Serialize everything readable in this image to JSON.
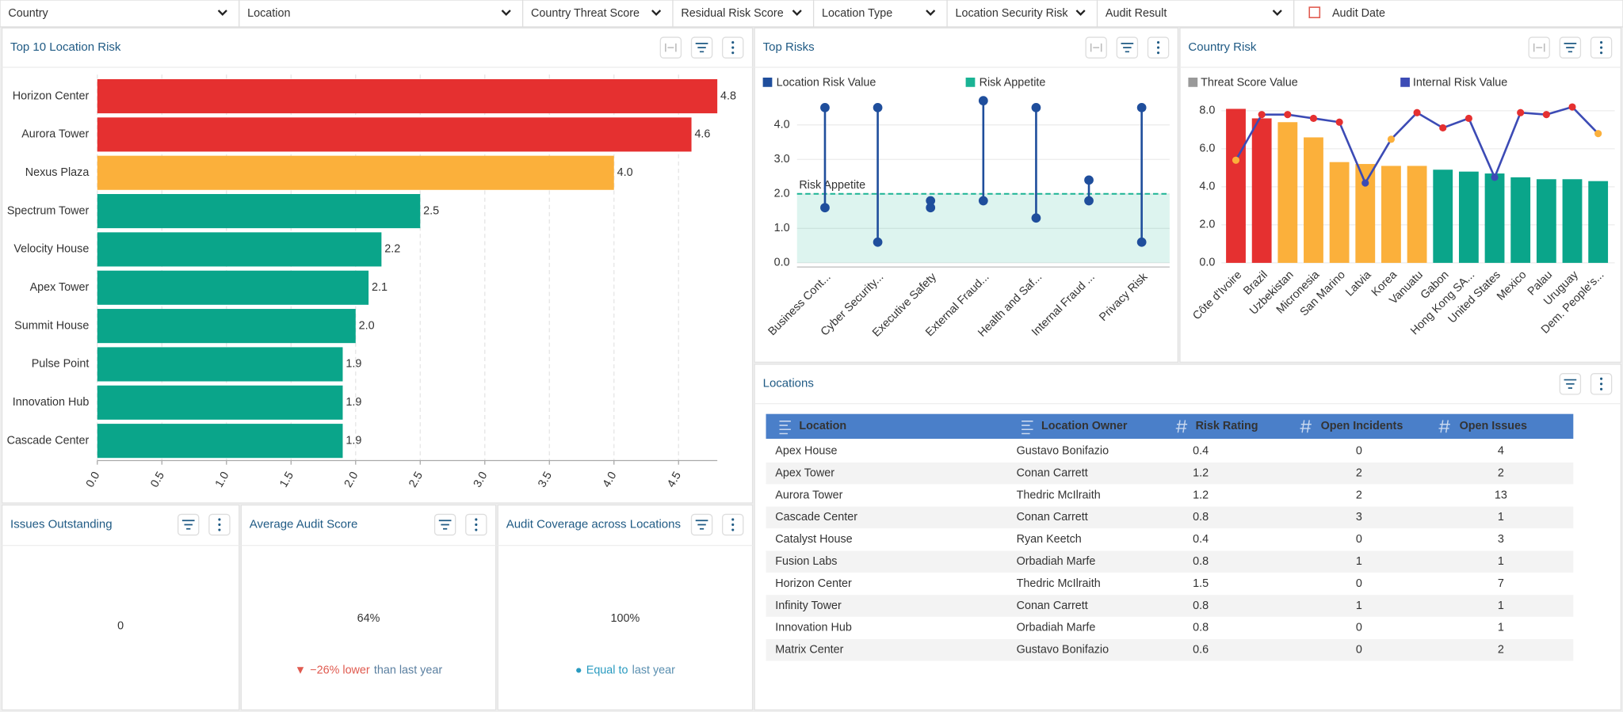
{
  "filters": [
    "Country",
    "Location",
    "Country Threat Score",
    "Residual Risk Score",
    "Location Type",
    "Location Security Risk",
    "Audit Result",
    "Audit Date"
  ],
  "top_location_risk": {
    "title": "Top 10 Location Risk",
    "type": "bar",
    "orientation": "horizontal",
    "categories": [
      "Horizon Center",
      "Aurora Tower",
      "Nexus Plaza",
      "Spectrum Tower",
      "Velocity House",
      "Apex Tower",
      "Summit House",
      "Pulse Point",
      "Innovation Hub",
      "Cascade Center"
    ],
    "values": [
      4.8,
      4.6,
      4.0,
      2.5,
      2.2,
      2.1,
      2.0,
      1.9,
      1.9,
      1.9
    ],
    "value_labels": [
      "4.8",
      "4.6",
      "4.0",
      "2.5",
      "2.2",
      "2.1",
      "2.0",
      "1.9",
      "1.9",
      "1.9"
    ],
    "colors": [
      "#e53030",
      "#e53030",
      "#fbb03b",
      "#0aa58a",
      "#0aa58a",
      "#0aa58a",
      "#0aa58a",
      "#0aa58a",
      "#0aa58a",
      "#0aa58a"
    ],
    "xlim": [
      0,
      4.8
    ],
    "xticks": [
      {
        "value": 0,
        "label": "0.0"
      },
      {
        "value": 0.5,
        "label": "0.5"
      },
      {
        "value": 1,
        "label": "1.0"
      },
      {
        "value": 1.5,
        "label": "1.5"
      },
      {
        "value": 2,
        "label": "2.0"
      },
      {
        "value": 2.5,
        "label": "2.5"
      },
      {
        "value": 3,
        "label": "3.0"
      },
      {
        "value": 3.5,
        "label": "3.5"
      },
      {
        "value": 4,
        "label": "4.0"
      },
      {
        "value": 4.5,
        "label": "4.5"
      }
    ],
    "grid": true
  },
  "top_risks": {
    "title": "Top Risks",
    "type": "dumbbell",
    "categories": [
      "Business Cont...",
      "Cyber Security...",
      "Executive Safety",
      "External Fraud...",
      "Health and Saf...",
      "Internal Fraud ...",
      "Privacy Risk"
    ],
    "series": [
      {
        "name": "Location Risk Value",
        "color": "#1f4e9c",
        "low": [
          1.6,
          0.6,
          1.6,
          1.8,
          1.3,
          1.8,
          0.6
        ],
        "high": [
          4.5,
          4.5,
          1.8,
          4.7,
          4.5,
          2.4,
          4.5
        ]
      }
    ],
    "risk_appetite": {
      "name": "Risk Appetite",
      "value": 2.0,
      "color": "#1ab394"
    },
    "ylim": [
      0,
      4.8
    ],
    "yticks": [
      {
        "value": 0,
        "label": "0.0"
      },
      {
        "value": 1,
        "label": "1.0"
      },
      {
        "value": 2,
        "label": "2.0"
      },
      {
        "value": 3,
        "label": "3.0"
      },
      {
        "value": 4,
        "label": "4.0"
      }
    ],
    "grid": true
  },
  "country_risk": {
    "title": "Country Risk",
    "type": "bar-line",
    "categories": [
      "Côte d'Ivoire",
      "Brazil",
      "Uzbekistan",
      "Micronesia",
      "San Marino",
      "Latvia",
      "Korea",
      "Vanuatu",
      "Gabon",
      "Hong Kong SA...",
      "United States",
      "Mexico",
      "Palau",
      "Uruguay",
      "Dem. People's..."
    ],
    "series": [
      {
        "name": "Threat Score Value",
        "color": "#999999",
        "type": "bar",
        "values": [
          8.1,
          7.6,
          7.4,
          6.6,
          5.3,
          5.2,
          5.1,
          5.1,
          4.9,
          4.8,
          4.7,
          4.5,
          4.4,
          4.4,
          4.3
        ],
        "colors": [
          "#e53030",
          "#e53030",
          "#fbb03b",
          "#fbb03b",
          "#fbb03b",
          "#fbb03b",
          "#fbb03b",
          "#fbb03b",
          "#0aa58a",
          "#0aa58a",
          "#0aa58a",
          "#0aa58a",
          "#0aa58a",
          "#0aa58a",
          "#0aa58a"
        ]
      },
      {
        "name": "Internal Risk Value",
        "color": "#3c4bb5",
        "type": "line",
        "values": [
          5.4,
          7.8,
          7.8,
          7.6,
          7.4,
          4.2,
          6.5,
          7.9,
          7.1,
          7.6,
          4.5,
          7.9,
          7.8,
          8.2,
          6.8
        ],
        "point_colors": [
          "#fbb03b",
          "#e53030",
          "#e53030",
          "#e53030",
          "#e53030",
          "#3c4bb5",
          "#fbb03b",
          "#e53030",
          "#e53030",
          "#e53030",
          "#3c4bb5",
          "#e53030",
          "#e53030",
          "#e53030",
          "#fbb03b"
        ]
      }
    ],
    "ylim": [
      0,
      8.6
    ],
    "yticks": [
      {
        "value": 0,
        "label": "0.0"
      },
      {
        "value": 2,
        "label": "2.0"
      },
      {
        "value": 4,
        "label": "4.0"
      },
      {
        "value": 6,
        "label": "6.0"
      },
      {
        "value": 8,
        "label": "8.0"
      }
    ],
    "grid": true
  },
  "locations": {
    "title": "Locations",
    "columns": [
      "Location",
      "Location Owner",
      "Risk Rating",
      "Open Incidents",
      "Open Issues"
    ],
    "rows": [
      [
        "Apex House",
        "Gustavo Bonifazio",
        0.4,
        0,
        4
      ],
      [
        "Apex Tower",
        "Conan Carrett",
        1.2,
        2,
        2
      ],
      [
        "Aurora Tower",
        "Thedric McIlraith",
        1.2,
        2,
        13
      ],
      [
        "Cascade Center",
        "Conan Carrett",
        0.8,
        3,
        1
      ],
      [
        "Catalyst House",
        "Ryan Keetch",
        0.4,
        0,
        3
      ],
      [
        "Fusion Labs",
        "Orbadiah Marfe",
        0.8,
        1,
        1
      ],
      [
        "Horizon Center",
        "Thedric McIlraith",
        1.5,
        0,
        7
      ],
      [
        "Infinity Tower",
        "Conan Carrett",
        0.8,
        1,
        1
      ],
      [
        "Innovation Hub",
        "Orbadiah Marfe",
        0.8,
        0,
        1
      ],
      [
        "Matrix Center",
        "Gustavo Bonifazio",
        0.6,
        0,
        2
      ]
    ]
  },
  "issues_outstanding": {
    "title": "Issues Outstanding",
    "value": "0"
  },
  "average_audit_score": {
    "title": "Average Audit Score",
    "value": "64%",
    "indicator": "▼",
    "change": "−26% lower",
    "comparison": "than last year"
  },
  "audit_coverage": {
    "title": "Audit Coverage across Locations",
    "value": "100%",
    "indicator": "●",
    "change": "Equal to",
    "comparison": "last year"
  }
}
